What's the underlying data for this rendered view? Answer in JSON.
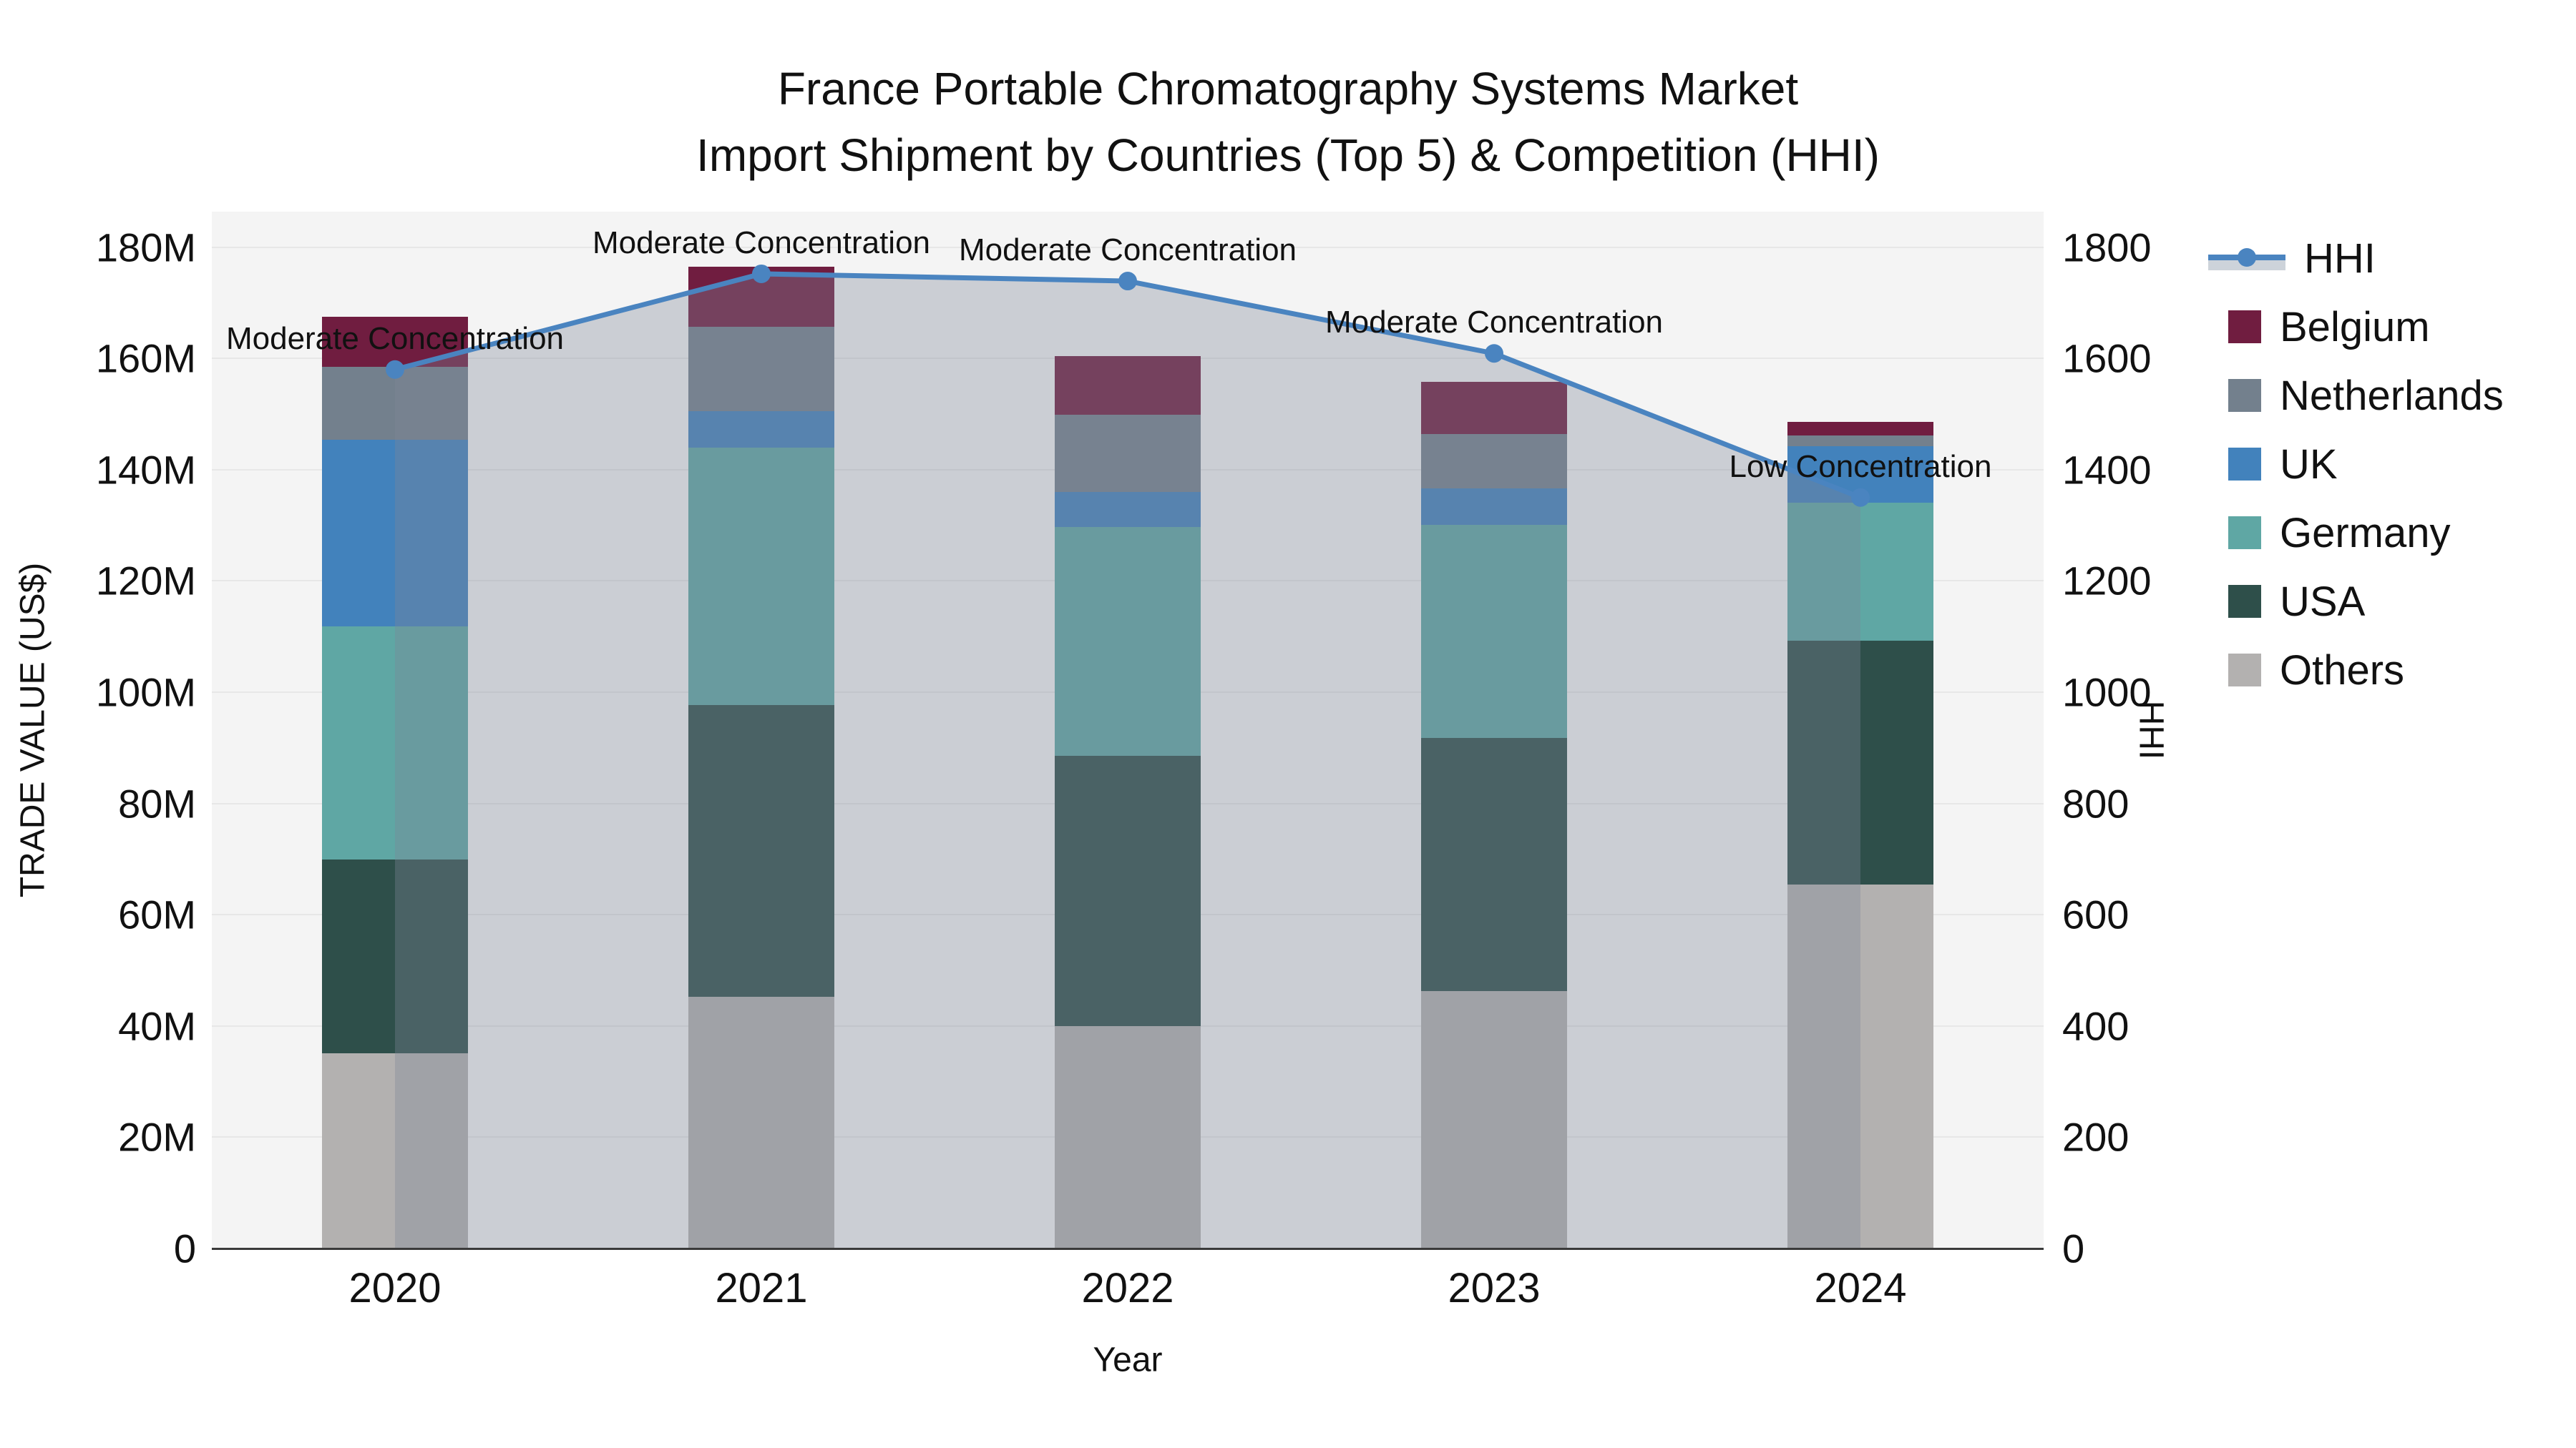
{
  "title": {
    "line1": "France Portable Chromatography Systems Market",
    "line2": "Import Shipment by Countries (Top 5) & Competition (HHI)"
  },
  "chart_data": {
    "type": "bar",
    "subtype": "stacked-bars-with-line-overlay",
    "categories": [
      "2020",
      "2021",
      "2022",
      "2023",
      "2024"
    ],
    "unit_left": "M US$",
    "bar_series": [
      {
        "name": "Belgium",
        "color_key": "belgium",
        "values": [
          9.0,
          10.8,
          10.5,
          9.4,
          2.4
        ]
      },
      {
        "name": "Netherlands",
        "color_key": "netherlands",
        "values": [
          13.1,
          15.2,
          13.9,
          9.8,
          2.0
        ]
      },
      {
        "name": "UK",
        "color_key": "uk",
        "values": [
          33.6,
          6.5,
          6.3,
          6.5,
          10.1
        ]
      },
      {
        "name": "Germany",
        "color_key": "germany",
        "values": [
          41.9,
          46.3,
          41.1,
          38.3,
          24.8
        ]
      },
      {
        "name": "USA",
        "color_key": "usa",
        "values": [
          34.8,
          52.5,
          48.6,
          45.5,
          43.9
        ]
      },
      {
        "name": "Others",
        "color_key": "others",
        "values": [
          35.1,
          45.2,
          40.0,
          46.3,
          65.4
        ]
      }
    ],
    "stack_order_bottom_to_top": [
      "Others",
      "USA",
      "Germany",
      "UK",
      "Netherlands",
      "Belgium"
    ],
    "line_series": {
      "name": "HHI",
      "axis": "right",
      "values": [
        1580,
        1752,
        1739,
        1609,
        1350
      ],
      "area_fill": true
    },
    "annotations": [
      {
        "category": "2020",
        "text": "Moderate Concentration"
      },
      {
        "category": "2021",
        "text": "Moderate Concentration"
      },
      {
        "category": "2022",
        "text": "Moderate Concentration"
      },
      {
        "category": "2023",
        "text": "Moderate Concentration"
      },
      {
        "category": "2024",
        "text": "Low Concentration"
      }
    ],
    "y_left": {
      "title": "TRADE VALUE (US$)",
      "ticks": [
        "0",
        "20M",
        "40M",
        "60M",
        "80M",
        "100M",
        "120M",
        "140M",
        "160M",
        "180M"
      ],
      "tick_step": 20,
      "range": [
        0,
        186
      ]
    },
    "y_right": {
      "title": "HHI",
      "ticks": [
        "0",
        "200",
        "400",
        "600",
        "800",
        "1000",
        "1200",
        "1400",
        "1600",
        "1800"
      ],
      "tick_step": 200,
      "range": [
        0,
        1860
      ]
    },
    "x": {
      "title": "Year"
    },
    "grid": true,
    "legend_position": "right"
  },
  "legend": {
    "items": [
      {
        "label": "HHI",
        "type": "line",
        "color_key": "hhi_line"
      },
      {
        "label": "Belgium",
        "type": "swatch",
        "color_key": "belgium"
      },
      {
        "label": "Netherlands",
        "type": "swatch",
        "color_key": "netherlands"
      },
      {
        "label": "UK",
        "type": "swatch",
        "color_key": "uk"
      },
      {
        "label": "Germany",
        "type": "swatch",
        "color_key": "germany"
      },
      {
        "label": "USA",
        "type": "swatch",
        "color_key": "usa"
      },
      {
        "label": "Others",
        "type": "swatch",
        "color_key": "others"
      }
    ]
  },
  "colors": {
    "hhi_line": "#4A84C0",
    "area_fill": "rgba(127,134,152,0.35)",
    "belgium": "#701D40",
    "netherlands": "#73808D",
    "uk": "#4282BC",
    "germany": "#5FA7A4",
    "usa": "#2E4F4A",
    "others": "#B3B1B0",
    "plot_bg": "#F4F4F4",
    "gridline": "#E7E7E7",
    "axis_line": "#3A3A3A",
    "text": "#111111"
  }
}
